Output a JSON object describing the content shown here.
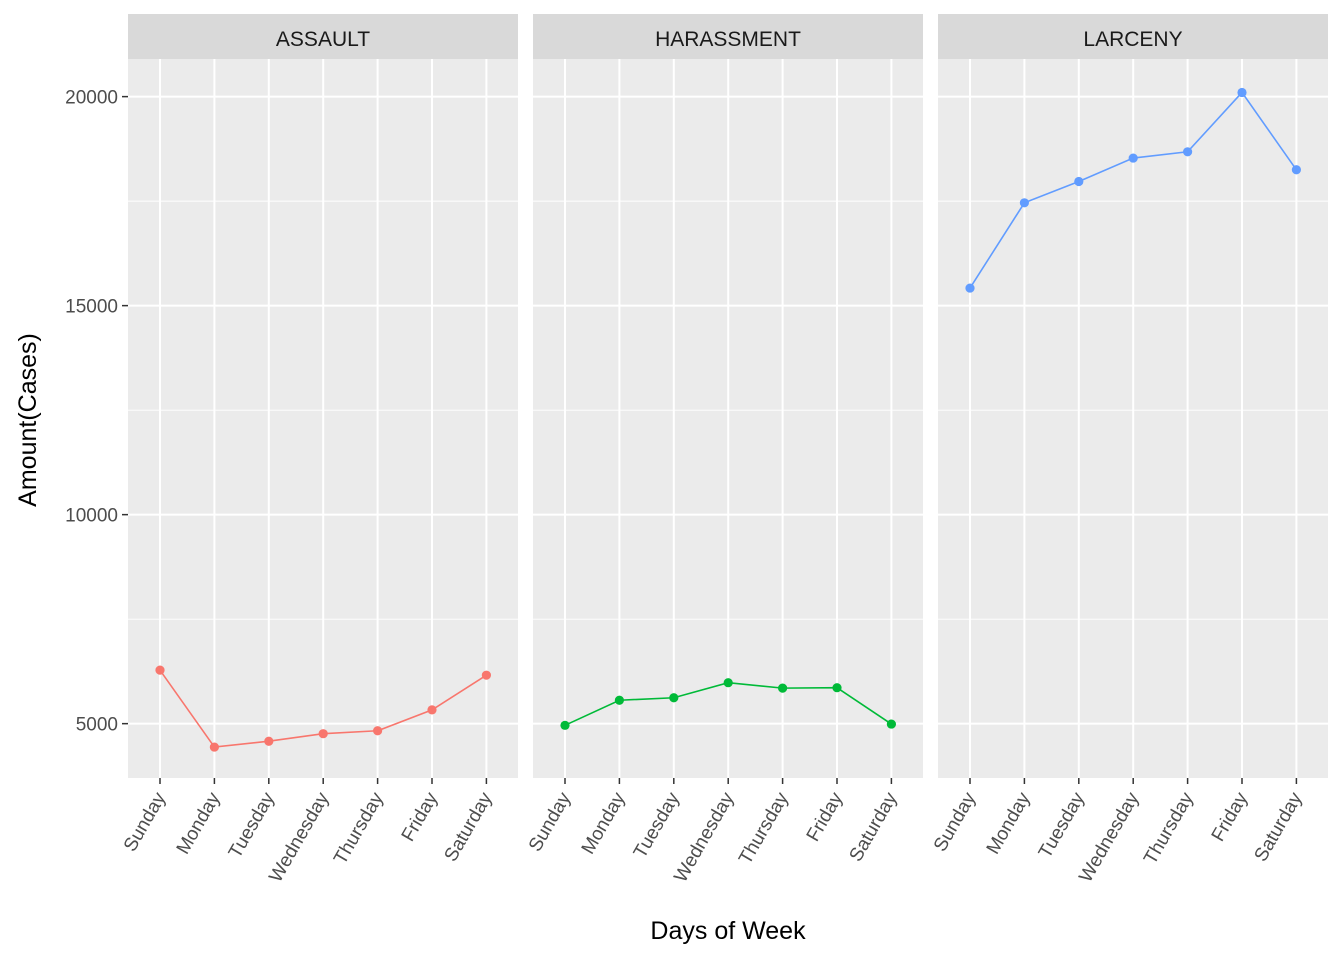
{
  "chart_data": {
    "type": "line",
    "facet_by": "crime type",
    "xlabel": "Days of Week",
    "ylabel": "Amount(Cases)",
    "categories": [
      "Sunday",
      "Monday",
      "Tuesday",
      "Wednesday",
      "Thursday",
      "Friday",
      "Saturday"
    ],
    "yticks": [
      5000,
      10000,
      15000,
      20000
    ],
    "ylim": [
      3700,
      20900
    ],
    "grid": true,
    "legend": "none",
    "panels": [
      {
        "name": "ASSAULT",
        "color": "#F8766D",
        "values": [
          6280,
          4440,
          4580,
          4760,
          4830,
          5330,
          6160
        ]
      },
      {
        "name": "HARASSMENT",
        "color": "#00BA38",
        "values": [
          4960,
          5560,
          5620,
          5980,
          5850,
          5860,
          4990
        ]
      },
      {
        "name": "LARCENY",
        "color": "#619CFF",
        "values": [
          15420,
          17460,
          17970,
          18530,
          18680,
          20100,
          18250
        ]
      }
    ]
  }
}
